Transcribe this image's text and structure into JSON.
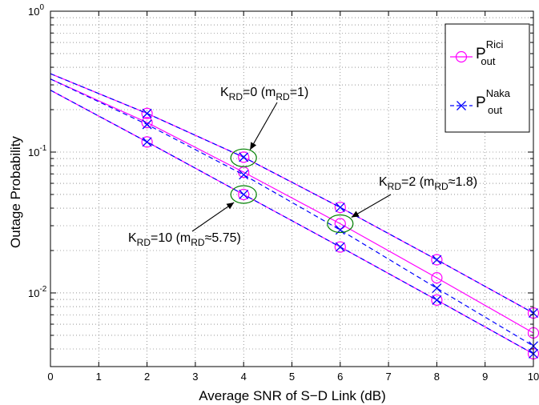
{
  "chart_data": {
    "type": "line",
    "xlabel": "Average SNR of S−D Link (dB)",
    "ylabel": "Outage Probability",
    "xlim": [
      0,
      10
    ],
    "ylim": [
      0.003,
      1
    ],
    "yscale": "log",
    "grid": "on (dotted, with minor log grid)",
    "x_ticks": [
      "0",
      "1",
      "2",
      "3",
      "4",
      "5",
      "6",
      "7",
      "8",
      "9",
      "10"
    ],
    "y_ticks": [
      {
        "base": "10",
        "exp": "0"
      },
      {
        "base": "10",
        "exp": "-1"
      },
      {
        "base": "10",
        "exp": "-2"
      }
    ],
    "legend": {
      "placement": "top-right",
      "entries": [
        {
          "base": "P",
          "sup": "Rici",
          "sub": "out",
          "color": "#ff00ff",
          "style": "solid",
          "marker": "circle"
        },
        {
          "base": "P",
          "sup": "Naka",
          "sub": "out",
          "color": "#0000ff",
          "style": "dashed",
          "marker": "x"
        }
      ]
    },
    "series": [
      {
        "group": "Rici",
        "color": "#ff00ff",
        "style": "solid",
        "x": [
          0,
          2,
          4,
          6,
          8,
          10
        ],
        "y": [
          0.36,
          0.188,
          0.092,
          0.0405,
          0.0172,
          0.0072
        ],
        "marker_x": [
          2,
          4,
          6,
          8,
          10
        ]
      },
      {
        "group": "Rici",
        "color": "#ff00ff",
        "style": "solid",
        "x": [
          0,
          2,
          4,
          6,
          8,
          10
        ],
        "y": [
          0.33,
          0.162,
          0.072,
          0.031,
          0.0128,
          0.0052
        ],
        "marker_x": [
          2,
          4,
          6,
          8,
          10
        ]
      },
      {
        "group": "Rici",
        "color": "#ff00ff",
        "style": "solid",
        "x": [
          0,
          2,
          4,
          6,
          8,
          10
        ],
        "y": [
          0.275,
          0.118,
          0.05,
          0.0212,
          0.0089,
          0.0037
        ],
        "marker_x": [
          2,
          4,
          6,
          8,
          10
        ]
      },
      {
        "group": "Naka",
        "color": "#0000ff",
        "style": "dashed",
        "x": [
          0,
          2,
          4,
          6,
          8,
          10
        ],
        "y": [
          0.36,
          0.188,
          0.092,
          0.0405,
          0.0172,
          0.0072
        ],
        "marker_x": [
          2,
          4,
          6,
          8,
          10
        ]
      },
      {
        "group": "Naka",
        "color": "#0000ff",
        "style": "dashed",
        "x": [
          0,
          2,
          4,
          6,
          8,
          10
        ],
        "y": [
          0.33,
          0.157,
          0.069,
          0.028,
          0.0108,
          0.0042
        ],
        "marker_x": [
          2,
          4,
          6,
          8,
          10
        ]
      },
      {
        "group": "Naka",
        "color": "#0000ff",
        "style": "dashed",
        "x": [
          0,
          2,
          4,
          6,
          8,
          10
        ],
        "y": [
          0.275,
          0.118,
          0.05,
          0.0212,
          0.0089,
          0.0037
        ],
        "marker_x": [
          2,
          4,
          6,
          8,
          10
        ]
      }
    ],
    "annotations": [
      {
        "parts": [
          "K",
          "RD",
          "=0 (m",
          "RD",
          "=1)"
        ],
        "ellipse_at": {
          "x": 4,
          "y": 0.091
        }
      },
      {
        "parts": [
          "K",
          "RD",
          "=2 (m",
          "RD",
          "≈1.8)"
        ],
        "ellipse_at": {
          "x": 6,
          "y": 0.031
        }
      },
      {
        "parts": [
          "K",
          "RD",
          "=10 (m",
          "RD",
          "≈5.75)"
        ],
        "ellipse_at": {
          "x": 4,
          "y": 0.05
        }
      }
    ],
    "colors": {
      "rician": "#ff00ff",
      "nakagami": "#0000ff",
      "ellipse": "#008000"
    }
  }
}
